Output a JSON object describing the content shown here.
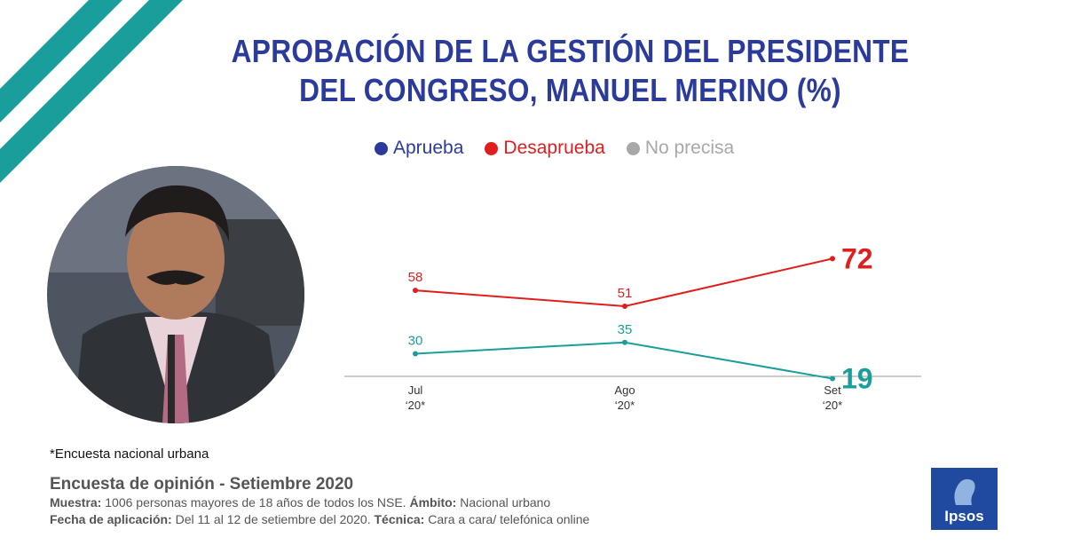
{
  "title": "APROBACIÓN DE LA GESTIÓN DEL PRESIDENTE DEL CONGRESO, MANUEL MERINO (%)",
  "legend": [
    {
      "label": "Aprueba",
      "color": "#2b3b9b"
    },
    {
      "label": "Desaprueba",
      "color": "#e01e1e"
    },
    {
      "label": "No precisa",
      "color": "#a8a8a8"
    }
  ],
  "chart_data": {
    "type": "line",
    "title": "APROBACIÓN DE LA GESTIÓN DEL PRESIDENTE DEL CONGRESO, MANUEL MERINO (%)",
    "categories": [
      [
        "Jul",
        "‘20*"
      ],
      [
        "Ago",
        "‘20*"
      ],
      [
        "Set",
        "‘20*"
      ]
    ],
    "series": [
      {
        "name": "Desaprueba",
        "color": "#e01e1e",
        "values": [
          58,
          51,
          72
        ]
      },
      {
        "name": "Aprueba",
        "color": "#1a9e9b",
        "values": [
          30,
          35,
          19
        ]
      }
    ],
    "legend_placement": "top",
    "grid": false
  },
  "footer": {
    "note": "*Encuesta nacional urbana",
    "survey_title": "Encuesta de opinión - Setiembre 2020",
    "muestra_label": "Muestra:",
    "muestra_value": " 1006 personas mayores de 18 años de todos los NSE.",
    "ambito_label": "Ámbito:",
    "ambito_value": " Nacional urbano",
    "fecha_label": "Fecha de aplicación:",
    "fecha_value": " Del 11 al 12 de setiembre del 2020.",
    "tecnica_label": "Técnica:",
    "tecnica_value": " Cara a cara/ telefónica online"
  },
  "logo": {
    "text": "Ipsos",
    "color": "#1f4aa0"
  }
}
